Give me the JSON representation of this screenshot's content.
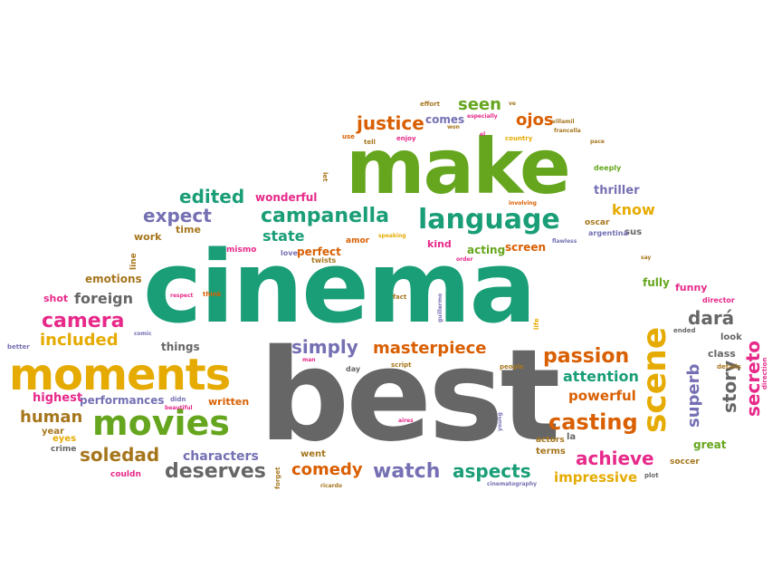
{
  "colors": {
    "teal": "#1a9e77",
    "gray": "#666666",
    "green": "#66a61e",
    "gold": "#e6ab02",
    "pink": "#e7298a",
    "orange": "#d95f02",
    "purple": "#7570b3",
    "olive": "#a6761d"
  },
  "words": [
    {
      "text": "cinema",
      "color": "teal",
      "weight": 100
    },
    {
      "text": "best",
      "color": "gray",
      "weight": 96
    },
    {
      "text": "make",
      "color": "green",
      "weight": 80
    },
    {
      "text": "moments",
      "color": "gold",
      "weight": 45
    },
    {
      "text": "movies",
      "color": "green",
      "weight": 34
    },
    {
      "text": "scene",
      "color": "gold",
      "weight": 34
    },
    {
      "text": "language",
      "color": "teal",
      "weight": 24
    },
    {
      "text": "campanella",
      "color": "teal",
      "weight": 21
    },
    {
      "text": "casting",
      "color": "orange",
      "weight": 20
    },
    {
      "text": "camera",
      "color": "pink",
      "weight": 18
    },
    {
      "text": "passion",
      "color": "orange",
      "weight": 18
    },
    {
      "text": "achieve",
      "color": "pink",
      "weight": 17
    },
    {
      "text": "secreto",
      "color": "pink",
      "weight": 16
    },
    {
      "text": "watch",
      "color": "purple",
      "weight": 16
    },
    {
      "text": "simply",
      "color": "purple",
      "weight": 16
    },
    {
      "text": "masterpiece",
      "color": "orange",
      "weight": 16
    },
    {
      "text": "deserves",
      "color": "gray",
      "weight": 16
    },
    {
      "text": "aspects",
      "color": "teal",
      "weight": 16
    },
    {
      "text": "soledad",
      "color": "olive",
      "weight": 15
    },
    {
      "text": "comedy",
      "color": "orange",
      "weight": 15
    },
    {
      "text": "story",
      "color": "gray",
      "weight": 15
    },
    {
      "text": "superb",
      "color": "purple",
      "weight": 15
    },
    {
      "text": "justice",
      "color": "orange",
      "weight": 15
    },
    {
      "text": "included",
      "color": "gold",
      "weight": 14
    },
    {
      "text": "dará",
      "color": "gray",
      "weight": 14
    },
    {
      "text": "edited",
      "color": "teal",
      "weight": 14
    },
    {
      "text": "expect",
      "color": "purple",
      "weight": 14
    },
    {
      "text": "seen",
      "color": "green",
      "weight": 14
    },
    {
      "text": "ojos",
      "color": "orange",
      "weight": 14
    },
    {
      "text": "human",
      "color": "olive",
      "weight": 13
    },
    {
      "text": "attention",
      "color": "teal",
      "weight": 13
    },
    {
      "text": "powerful",
      "color": "orange",
      "weight": 12
    },
    {
      "text": "foreign",
      "color": "gray",
      "weight": 12
    },
    {
      "text": "state",
      "color": "teal",
      "weight": 12
    },
    {
      "text": "know",
      "color": "gold",
      "weight": 12
    },
    {
      "text": "impressive",
      "color": "gold",
      "weight": 12
    },
    {
      "text": "characters",
      "color": "purple",
      "weight": 11
    },
    {
      "text": "performances",
      "color": "purple",
      "weight": 10
    },
    {
      "text": "thriller",
      "color": "purple",
      "weight": 10
    },
    {
      "text": "emotions",
      "color": "olive",
      "weight": 10
    },
    {
      "text": "wonderful",
      "color": "pink",
      "weight": 10
    },
    {
      "text": "perfect",
      "color": "orange",
      "weight": 10
    },
    {
      "text": "highest",
      "color": "pink",
      "weight": 10
    },
    {
      "text": "screen",
      "color": "orange",
      "weight": 10
    },
    {
      "text": "acting",
      "color": "green",
      "weight": 10
    },
    {
      "text": "great",
      "color": "green",
      "weight": 10
    },
    {
      "text": "things",
      "color": "gray",
      "weight": 10
    },
    {
      "text": "comes",
      "color": "purple",
      "weight": 10
    },
    {
      "text": "fully",
      "color": "green",
      "weight": 9
    },
    {
      "text": "funny",
      "color": "pink",
      "weight": 9
    },
    {
      "text": "written",
      "color": "orange",
      "weight": 9
    },
    {
      "text": "time",
      "color": "olive",
      "weight": 9
    },
    {
      "text": "shot",
      "color": "pink",
      "weight": 9
    },
    {
      "text": "work",
      "color": "olive",
      "weight": 9
    },
    {
      "text": "kind",
      "color": "pink",
      "weight": 9
    },
    {
      "text": "class",
      "color": "gray",
      "weight": 9
    },
    {
      "text": "terms",
      "color": "olive",
      "weight": 9
    },
    {
      "text": "went",
      "color": "olive",
      "weight": 9
    },
    {
      "text": "year",
      "color": "olive",
      "weight": 8
    },
    {
      "text": "eyes",
      "color": "gold",
      "weight": 8
    },
    {
      "text": "crime",
      "color": "gray",
      "weight": 8
    },
    {
      "text": "couldn",
      "color": "pink",
      "weight": 8
    },
    {
      "text": "look",
      "color": "gray",
      "weight": 8
    },
    {
      "text": "la",
      "color": "gray",
      "weight": 8
    },
    {
      "text": "actors",
      "color": "olive",
      "weight": 8
    },
    {
      "text": "soccer",
      "color": "olive",
      "weight": 8
    },
    {
      "text": "sus",
      "color": "gray",
      "weight": 8
    },
    {
      "text": "oscar",
      "color": "olive",
      "weight": 8
    },
    {
      "text": "mismo",
      "color": "pink",
      "weight": 8
    },
    {
      "text": "amor",
      "color": "orange",
      "weight": 8
    },
    {
      "text": "twists",
      "color": "olive",
      "weight": 8
    },
    {
      "text": "love",
      "color": "purple",
      "weight": 7
    },
    {
      "text": "day",
      "color": "gray",
      "weight": 7
    },
    {
      "text": "line",
      "color": "olive",
      "weight": 7
    },
    {
      "text": "deeply",
      "color": "green",
      "weight": 7
    },
    {
      "text": "argentina",
      "color": "purple",
      "weight": 7
    },
    {
      "text": "director",
      "color": "pink",
      "weight": 7
    },
    {
      "text": "details",
      "color": "olive",
      "weight": 7
    },
    {
      "text": "ended",
      "color": "gray",
      "weight": 7
    },
    {
      "text": "plot",
      "color": "gray",
      "weight": 7
    },
    {
      "text": "better",
      "color": "purple",
      "weight": 7
    },
    {
      "text": "effort",
      "color": "olive",
      "weight": 7
    },
    {
      "text": "use",
      "color": "orange",
      "weight": 7
    },
    {
      "text": "tell",
      "color": "olive",
      "weight": 7
    },
    {
      "text": "enjoy",
      "color": "pink",
      "weight": 7
    },
    {
      "text": "won",
      "color": "olive",
      "weight": 6
    },
    {
      "text": "especially",
      "color": "pink",
      "weight": 6
    },
    {
      "text": "ve",
      "color": "olive",
      "weight": 6
    },
    {
      "text": "el",
      "color": "pink",
      "weight": 6
    },
    {
      "text": "country",
      "color": "gold",
      "weight": 6
    },
    {
      "text": "villamil",
      "color": "olive",
      "weight": 6
    },
    {
      "text": "francella",
      "color": "olive",
      "weight": 6
    },
    {
      "text": "pace",
      "color": "olive",
      "weight": 6
    },
    {
      "text": "involving",
      "color": "orange",
      "weight": 6
    },
    {
      "text": "speaking",
      "color": "gold",
      "weight": 6
    },
    {
      "text": "flawless",
      "color": "purple",
      "weight": 6
    },
    {
      "text": "order",
      "color": "pink",
      "weight": 6
    },
    {
      "text": "say",
      "color": "olive",
      "weight": 6
    },
    {
      "text": "respect",
      "color": "pink",
      "weight": 6
    },
    {
      "text": "think",
      "color": "orange",
      "weight": 6
    },
    {
      "text": "fact",
      "color": "olive",
      "weight": 6
    },
    {
      "text": "guillermo",
      "color": "purple",
      "weight": 6
    },
    {
      "text": "life",
      "color": "gold",
      "weight": 6
    },
    {
      "text": "comic",
      "color": "purple",
      "weight": 6
    },
    {
      "text": "man",
      "color": "pink",
      "weight": 6
    },
    {
      "text": "script",
      "color": "olive",
      "weight": 6
    },
    {
      "text": "people",
      "color": "olive",
      "weight": 6
    },
    {
      "text": "didn",
      "color": "purple",
      "weight": 6
    },
    {
      "text": "beautiful",
      "color": "pink",
      "weight": 6
    },
    {
      "text": "aires",
      "color": "pink",
      "weight": 6
    },
    {
      "text": "young",
      "color": "purple",
      "weight": 6
    },
    {
      "text": "forget",
      "color": "olive",
      "weight": 6
    },
    {
      "text": "ricardo",
      "color": "olive",
      "weight": 6
    },
    {
      "text": "cinematography",
      "color": "purple",
      "weight": 6
    },
    {
      "text": "let",
      "color": "olive",
      "weight": 6
    },
    {
      "text": "direction",
      "color": "pink",
      "weight": 6
    }
  ]
}
